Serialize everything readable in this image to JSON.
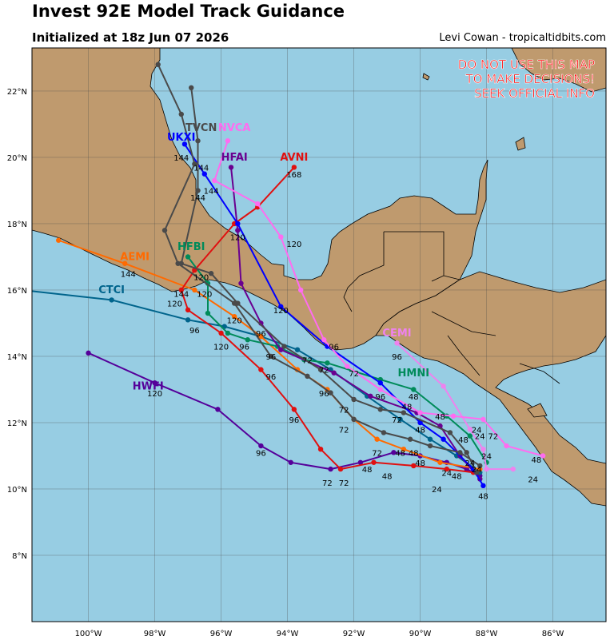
{
  "header": {
    "title": "Invest 92E Model Track Guidance",
    "subtitle": "Initialized at 18z Jun 07 2026",
    "credit": "Levi Cowan - tropicaltidbits.com"
  },
  "warning": [
    "DO NOT USE THIS MAP",
    "TO MAKE DECISIONS!",
    "SEEK OFFICIAL INFO"
  ],
  "colors": {
    "ocean": "#97cde3",
    "land": "#bf9a6e",
    "border": "#000000",
    "grid": "#4a4a4a"
  },
  "axes": {
    "lat_labels": [
      {
        "lat": 8,
        "text": "8°N"
      },
      {
        "lat": 10,
        "text": "10°N"
      },
      {
        "lat": 12,
        "text": "12°N"
      },
      {
        "lat": 14,
        "text": "14°N"
      },
      {
        "lat": 16,
        "text": "16°N"
      },
      {
        "lat": 18,
        "text": "18°N"
      },
      {
        "lat": 20,
        "text": "20°N"
      },
      {
        "lat": 22,
        "text": "22°N"
      }
    ],
    "lon_labels": [
      {
        "lon": -100,
        "text": "100°W"
      },
      {
        "lon": -98,
        "text": "98°W"
      },
      {
        "lon": -96,
        "text": "96°W"
      },
      {
        "lon": -94,
        "text": "94°W"
      },
      {
        "lon": -92,
        "text": "92°W"
      },
      {
        "lon": -90,
        "text": "90°W"
      },
      {
        "lon": -88,
        "text": "88°W"
      },
      {
        "lon": -86,
        "text": "86°W"
      }
    ]
  },
  "tracks": [
    {
      "name": "HWFI",
      "color": "#55009a",
      "label_at": [
        -98.2,
        12.9
      ],
      "points": [
        [
          -88.2,
          10.4
        ],
        [
          -88.6,
          10.6
        ],
        [
          -89.2,
          10.8
        ],
        [
          -90,
          11.0
        ],
        [
          -90.8,
          11.1
        ],
        [
          -91.8,
          10.8
        ],
        [
          -92.7,
          10.6
        ],
        [
          -93.9,
          10.8
        ],
        [
          -94.8,
          11.3
        ],
        [
          -96.1,
          12.4
        ],
        [
          -98,
          13.2
        ],
        [
          -100,
          14.1
        ]
      ]
    },
    {
      "name": "CTCI",
      "color": "#00648c",
      "label_at": [
        -99.3,
        15.9
      ],
      "points": [
        [
          -88.2,
          10.5
        ],
        [
          -88.9,
          11.0
        ],
        [
          -89.7,
          11.5
        ],
        [
          -90.6,
          12.1
        ],
        [
          -91.6,
          12.8
        ],
        [
          -92.7,
          13.6
        ],
        [
          -93.7,
          14.2
        ],
        [
          -94.8,
          14.6
        ],
        [
          -95.9,
          14.9
        ],
        [
          -97,
          15.1
        ],
        [
          -99.3,
          15.7
        ],
        [
          -102,
          16
        ]
      ]
    },
    {
      "name": "AEMI",
      "color": "#ff6a00",
      "label_at": [
        -98.6,
        16.9
      ],
      "points": [
        [
          -88.2,
          10.6
        ],
        [
          -89.4,
          10.8
        ],
        [
          -90.5,
          11.2
        ],
        [
          -91.3,
          11.5
        ],
        [
          -92,
          12.1
        ],
        [
          -92.8,
          13.0
        ],
        [
          -93.7,
          13.6
        ],
        [
          -94.8,
          14.6
        ],
        [
          -95.6,
          15.2
        ],
        [
          -96.8,
          16.0
        ],
        [
          -98.9,
          16.8
        ],
        [
          -100.9,
          17.5
        ]
      ]
    },
    {
      "name": "HFBI",
      "color": "#008b5a",
      "label_at": [
        -96.9,
        17.2
      ],
      "points": [
        [
          -88,
          10.8
        ],
        [
          -88.5,
          11.6
        ],
        [
          -89.2,
          12.2
        ],
        [
          -90.2,
          13.0
        ],
        [
          -91.2,
          13.3
        ],
        [
          -92.8,
          13.8
        ],
        [
          -93.5,
          13.9
        ],
        [
          -94.3,
          14.3
        ],
        [
          -95.2,
          14.5
        ],
        [
          -95.8,
          14.7
        ],
        [
          -96.4,
          15.3
        ],
        [
          -96.4,
          16.2
        ],
        [
          -97,
          17.0
        ]
      ]
    },
    {
      "name": "AVNI",
      "color": "#e01010",
      "label_at": [
        -93.8,
        19.9
      ],
      "points": [
        [
          -88.4,
          10.5
        ],
        [
          -89.2,
          10.6
        ],
        [
          -90.2,
          10.7
        ],
        [
          -91.4,
          10.8
        ],
        [
          -92.4,
          10.6
        ],
        [
          -93,
          11.2
        ],
        [
          -93.8,
          12.4
        ],
        [
          -94.8,
          13.6
        ],
        [
          -96,
          14.7
        ],
        [
          -97,
          15.4
        ],
        [
          -97.2,
          16.0
        ],
        [
          -96.8,
          16.6
        ],
        [
          -95.6,
          18.0
        ],
        [
          -94.9,
          18.5
        ],
        [
          -93.8,
          19.7
        ]
      ]
    },
    {
      "name": "HFAI",
      "color": "#6a0090",
      "label_at": [
        -95.6,
        20.0
      ],
      "points": [
        [
          -88.2,
          10.3
        ],
        [
          -88.8,
          11.0
        ],
        [
          -89.4,
          11.9
        ],
        [
          -90.1,
          12.3
        ],
        [
          -91.5,
          12.8
        ],
        [
          -92.6,
          13.5
        ],
        [
          -94.2,
          14.2
        ],
        [
          -94.8,
          15.0
        ],
        [
          -95.4,
          16.2
        ],
        [
          -95.5,
          17.8
        ],
        [
          -95.7,
          19.7
        ]
      ]
    },
    {
      "name": "UKXI",
      "color": "#0000ff",
      "label_at": [
        -97.2,
        20.5
      ],
      "points": [
        [
          -88.1,
          10.1
        ],
        [
          -88.4,
          10.6
        ],
        [
          -89.3,
          11.5
        ],
        [
          -90,
          12.0
        ],
        [
          -91.2,
          13.2
        ],
        [
          -92.8,
          14.3
        ],
        [
          -94.2,
          15.5
        ],
        [
          -95.5,
          18.0
        ],
        [
          -96.5,
          19.5
        ],
        [
          -97.1,
          20.4
        ]
      ]
    },
    {
      "name": "CEMI",
      "color": "#ee82ee",
      "label_at": [
        -90.7,
        14.6
      ],
      "points": [
        [
          -87.2,
          10.6
        ],
        [
          -88,
          10.6
        ],
        [
          -88.1,
          11.2
        ],
        [
          -88.5,
          11.8
        ],
        [
          -89.3,
          13.1
        ],
        [
          -90.7,
          14.4
        ]
      ]
    },
    {
      "name": "NVCA",
      "color": "#ff6cf0",
      "label_at": [
        -95.7,
        20.8
      ],
      "points": [
        [
          -86.3,
          11.0
        ],
        [
          -87.4,
          11.3
        ],
        [
          -88.1,
          12.1
        ],
        [
          -89,
          12.2
        ],
        [
          -90,
          12.3
        ],
        [
          -91.2,
          13.0
        ],
        [
          -92.2,
          13.7
        ],
        [
          -92.9,
          14.5
        ],
        [
          -93.6,
          16.0
        ],
        [
          -94.2,
          17.6
        ],
        [
          -94.9,
          18.6
        ],
        [
          -96.2,
          19.3
        ],
        [
          -95.8,
          20.5
        ]
      ]
    },
    {
      "name": "TVCN",
      "color": "#4a4a4a",
      "label_at": [
        -96.6,
        20.8
      ],
      "points": [
        [
          -88.3,
          10.5
        ],
        [
          -88.6,
          11.1
        ],
        [
          -89.1,
          11.7
        ],
        [
          -90.5,
          12.3
        ],
        [
          -91.2,
          12.4
        ],
        [
          -92,
          12.7
        ],
        [
          -93,
          13.6
        ],
        [
          -94.1,
          14.3
        ],
        [
          -95.5,
          15.6
        ],
        [
          -96.3,
          16.5
        ],
        [
          -97.2,
          16.8
        ],
        [
          -96.7,
          19.0
        ],
        [
          -96.7,
          20.5
        ],
        [
          -96.9,
          22.1
        ]
      ]
    },
    {
      "name": "TVCX",
      "color": "#4a4a4a",
      "label_at": null,
      "points": [
        [
          -88.2,
          10.7
        ],
        [
          -88.8,
          11.1
        ],
        [
          -89.7,
          11.3
        ],
        [
          -90.3,
          11.5
        ],
        [
          -91.1,
          11.7
        ],
        [
          -92,
          12.1
        ],
        [
          -92.7,
          12.9
        ],
        [
          -93.4,
          13.4
        ],
        [
          -94.5,
          14.0
        ],
        [
          -95.6,
          15.6
        ],
        [
          -97.3,
          16.8
        ],
        [
          -97.7,
          17.8
        ],
        [
          -96.8,
          19.8
        ],
        [
          -97.2,
          21.3
        ],
        [
          -97.9,
          22.8
        ]
      ]
    }
  ],
  "model_names": [
    {
      "text": "HWFI",
      "color": "#55009a"
    },
    {
      "text": "CTCI",
      "color": "#00648c"
    },
    {
      "text": "AEMI",
      "color": "#ff6a00"
    },
    {
      "text": "HFBI",
      "color": "#008b5a"
    },
    {
      "text": "AVNI",
      "color": "#e01010"
    },
    {
      "text": "HFAI",
      "color": "#6a0090"
    },
    {
      "text": "UKXI",
      "color": "#0000ff"
    },
    {
      "text": "CEMI",
      "color": "#ee82ee"
    },
    {
      "text": "HMNI",
      "color": "#008b5a"
    },
    {
      "text": "TVCN",
      "color": "#4a4a4a"
    },
    {
      "text": "NVCA",
      "color": "#ff6cf0"
    }
  ],
  "hour_labels": [
    {
      "text": "144",
      "at": [
        -97.2,
        19.9
      ]
    },
    {
      "text": "144",
      "at": [
        -96.6,
        19.6
      ]
    },
    {
      "text": "144",
      "at": [
        -96.7,
        18.7
      ]
    },
    {
      "text": "144",
      "at": [
        -96.3,
        18.9
      ]
    },
    {
      "text": "168",
      "at": [
        -93.8,
        19.4
      ]
    },
    {
      "text": "120",
      "at": [
        -95.5,
        17.5
      ]
    },
    {
      "text": "120",
      "at": [
        -93.8,
        17.3
      ]
    },
    {
      "text": "120",
      "at": [
        -96.6,
        16.3
      ]
    },
    {
      "text": "120",
      "at": [
        -96.5,
        15.8
      ]
    },
    {
      "text": "120",
      "at": [
        -97.4,
        15.5
      ]
    },
    {
      "text": "144",
      "at": [
        -98.8,
        16.4
      ]
    },
    {
      "text": "144",
      "at": [
        -97.2,
        15.8
      ]
    },
    {
      "text": "120",
      "at": [
        -95.6,
        15.0
      ]
    },
    {
      "text": "120",
      "at": [
        -94.2,
        15.3
      ]
    },
    {
      "text": "96",
      "at": [
        -96.8,
        14.7
      ]
    },
    {
      "text": "120",
      "at": [
        -96.0,
        14.2
      ]
    },
    {
      "text": "96",
      "at": [
        -95.3,
        14.2
      ]
    },
    {
      "text": "96",
      "at": [
        -94.8,
        14.6
      ]
    },
    {
      "text": "96",
      "at": [
        -94.5,
        13.9
      ]
    },
    {
      "text": "96",
      "at": [
        -92.6,
        14.2
      ]
    },
    {
      "text": "96",
      "at": [
        -90.7,
        13.9
      ]
    },
    {
      "text": "96",
      "at": [
        -94.5,
        13.3
      ]
    },
    {
      "text": "72",
      "at": [
        -93.4,
        13.8
      ]
    },
    {
      "text": "72",
      "at": [
        -92.9,
        13.5
      ]
    },
    {
      "text": "72",
      "at": [
        -92.0,
        13.4
      ]
    },
    {
      "text": "96",
      "at": [
        -92.9,
        12.8
      ]
    },
    {
      "text": "96",
      "at": [
        -91.2,
        12.7
      ]
    },
    {
      "text": "120",
      "at": [
        -98.0,
        12.8
      ]
    },
    {
      "text": "96",
      "at": [
        -93.8,
        12.0
      ]
    },
    {
      "text": "72",
      "at": [
        -92.3,
        12.3
      ]
    },
    {
      "text": "72",
      "at": [
        -92.3,
        11.7
      ]
    },
    {
      "text": "72",
      "at": [
        -90.7,
        12.0
      ]
    },
    {
      "text": "48",
      "at": [
        -90.4,
        12.4
      ]
    },
    {
      "text": "48",
      "at": [
        -90.2,
        12.7
      ]
    },
    {
      "text": "48",
      "at": [
        -89.4,
        12.1
      ]
    },
    {
      "text": "48",
      "at": [
        -90.0,
        11.7
      ]
    },
    {
      "text": "48",
      "at": [
        -88.7,
        11.4
      ]
    },
    {
      "text": "24",
      "at": [
        -88.3,
        11.7
      ]
    },
    {
      "text": "24",
      "at": [
        -88.2,
        11.5
      ]
    },
    {
      "text": "72",
      "at": [
        -87.8,
        11.5
      ]
    },
    {
      "text": "72",
      "at": [
        -91.3,
        11.0
      ]
    },
    {
      "text": "48",
      "at": [
        -90.6,
        11.0
      ]
    },
    {
      "text": "48",
      "at": [
        -90.2,
        11.0
      ]
    },
    {
      "text": "48",
      "at": [
        -90.0,
        10.7
      ]
    },
    {
      "text": "48",
      "at": [
        -91.0,
        10.3
      ]
    },
    {
      "text": "48",
      "at": [
        -91.6,
        10.5
      ]
    },
    {
      "text": "24",
      "at": [
        -89.2,
        10.4
      ]
    },
    {
      "text": "24",
      "at": [
        -89.5,
        9.9
      ]
    },
    {
      "text": "24",
      "at": [
        -88.5,
        10.7
      ]
    },
    {
      "text": "24",
      "at": [
        -88.0,
        10.9
      ]
    },
    {
      "text": "24",
      "at": [
        -88.3,
        10.5
      ]
    },
    {
      "text": "48",
      "at": [
        -88.9,
        10.3
      ]
    },
    {
      "text": "48",
      "at": [
        -86.5,
        10.8
      ]
    },
    {
      "text": "24",
      "at": [
        -86.6,
        10.2
      ]
    },
    {
      "text": "48",
      "at": [
        -88.1,
        9.7
      ]
    },
    {
      "text": "72",
      "at": [
        -92.8,
        10.1
      ]
    },
    {
      "text": "72",
      "at": [
        -92.3,
        10.1
      ]
    },
    {
      "text": "96",
      "at": [
        -94.8,
        11.0
      ]
    }
  ]
}
